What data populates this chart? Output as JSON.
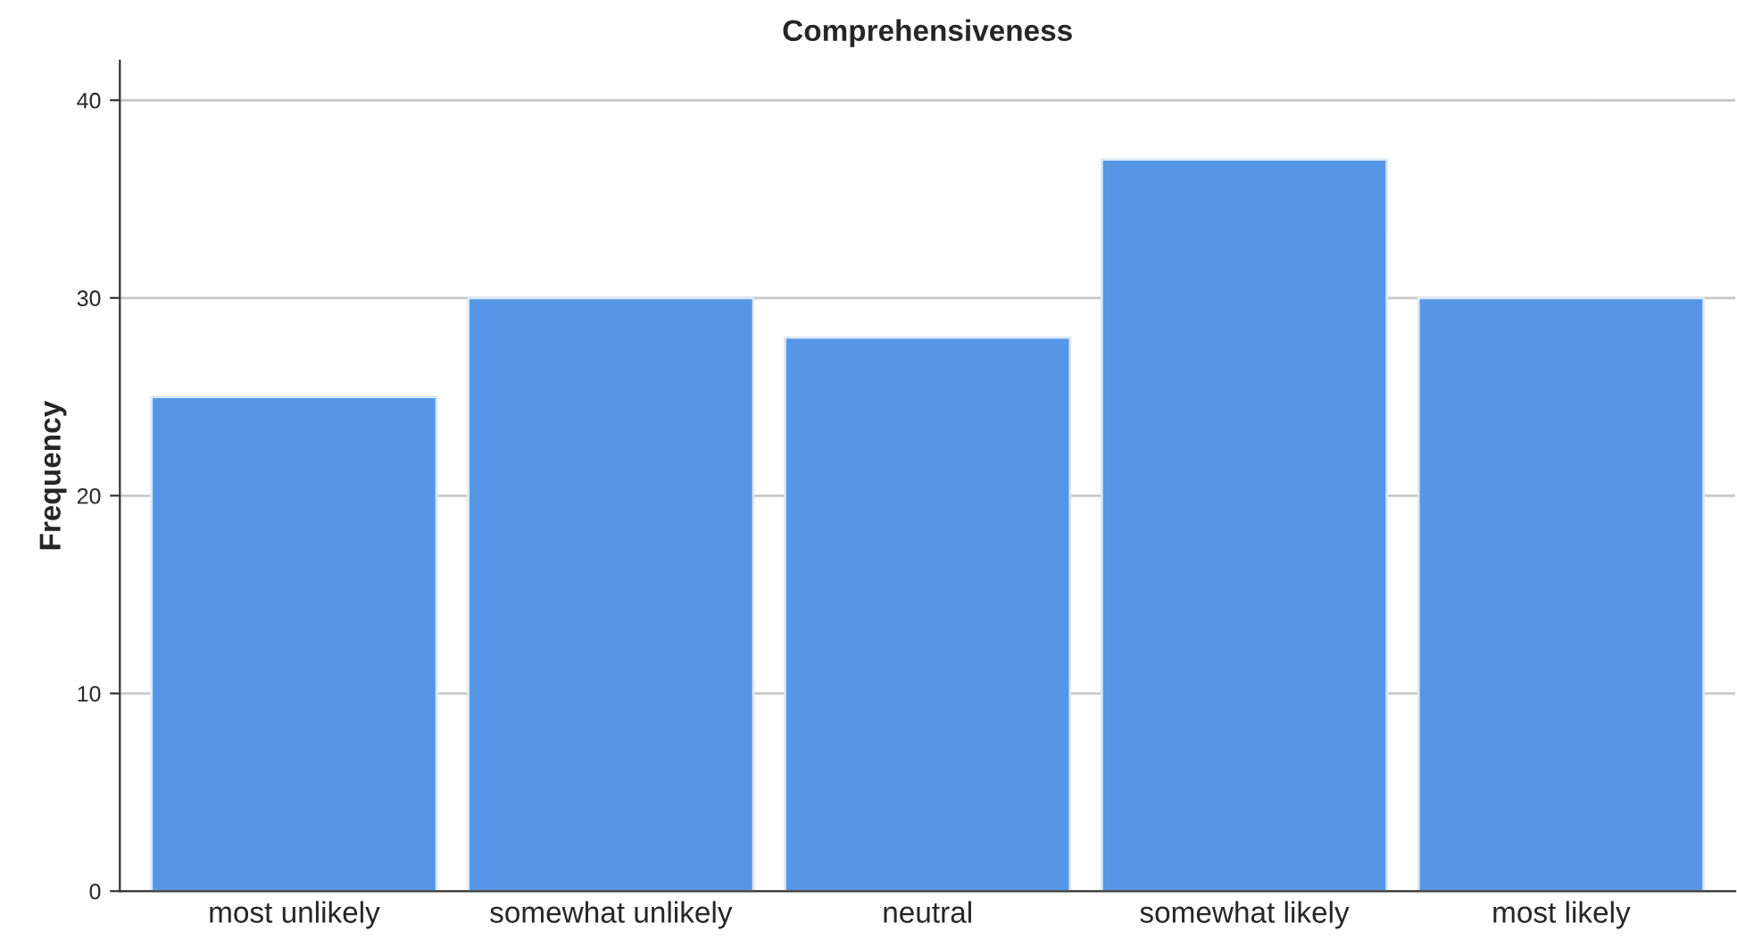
{
  "chart_data": {
    "type": "bar",
    "title": "Comprehensiveness",
    "ylabel": "Frequency",
    "categories": [
      "most unlikely",
      "somewhat unlikely",
      "neutral",
      "somewhat likely",
      "most likely"
    ],
    "values": [
      25,
      30,
      28,
      37,
      30
    ],
    "color": "#5596e6",
    "ylim": [
      0,
      42
    ],
    "yticks": [
      0,
      10,
      20,
      30,
      40
    ],
    "grid": "y"
  }
}
